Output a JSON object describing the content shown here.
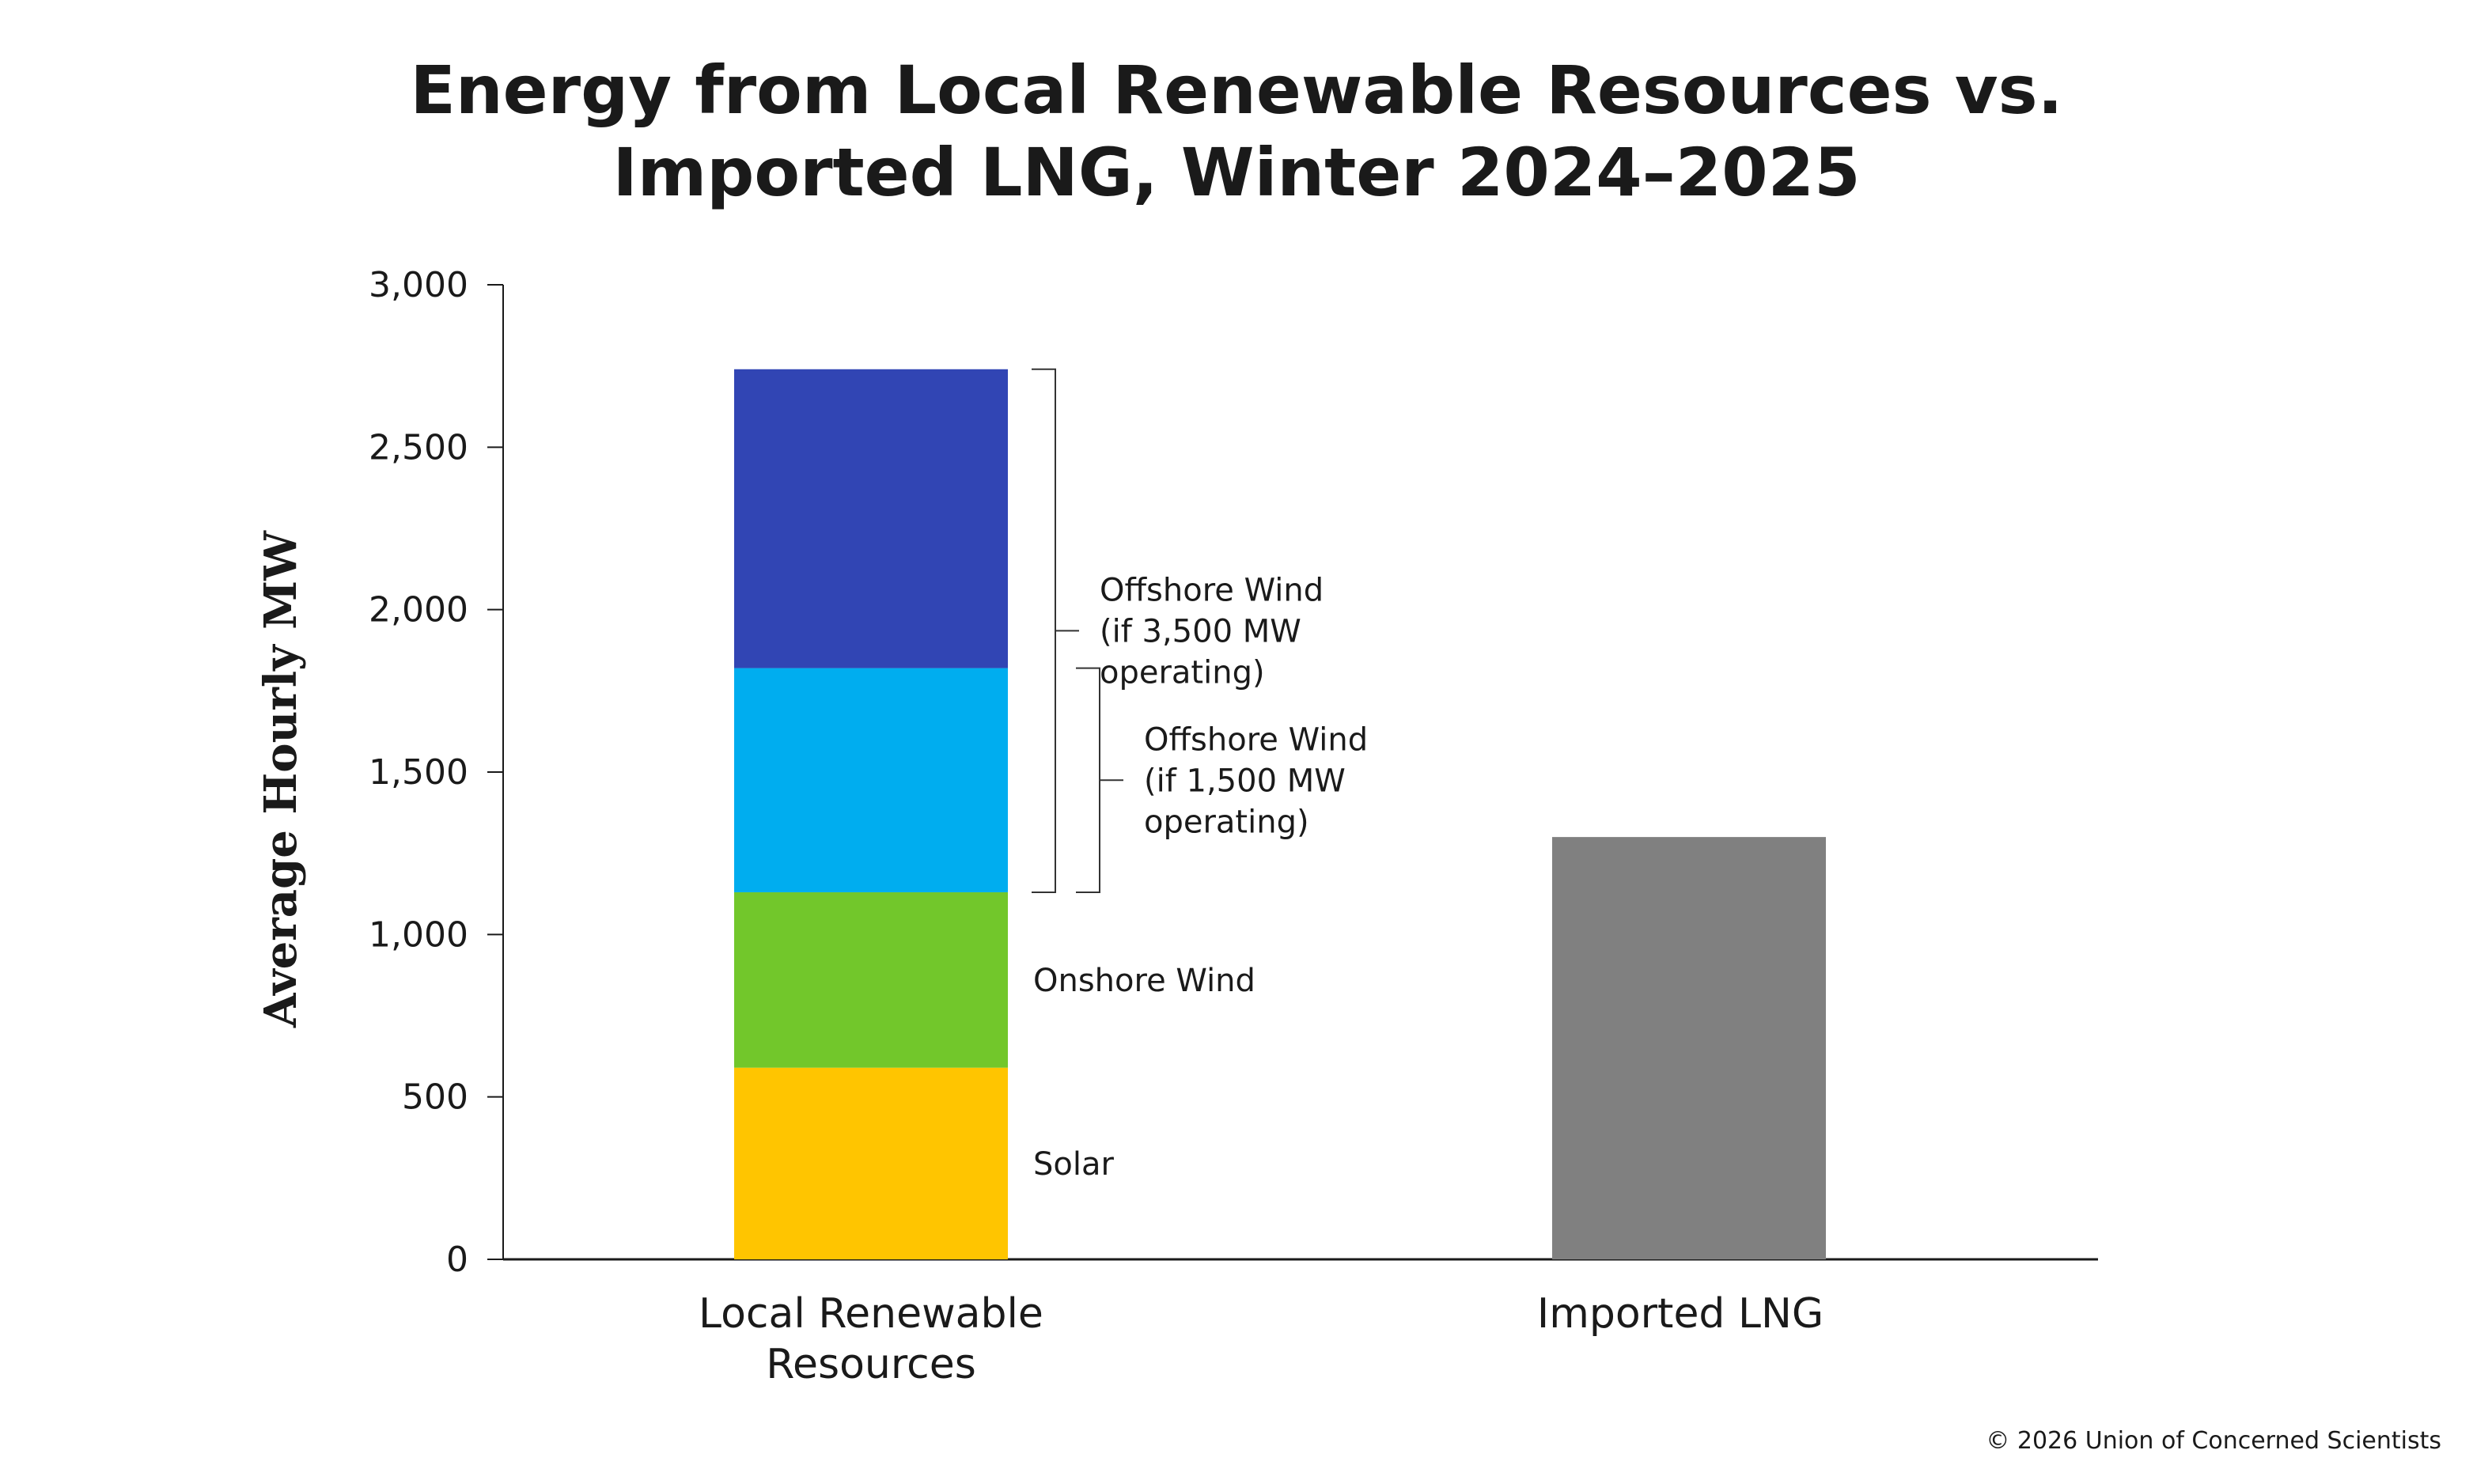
{
  "chart_data": {
    "type": "bar",
    "stacked": true,
    "title_lines": [
      "Energy from Local Renewable Resources vs.",
      "Imported LNG, Winter 2024–2025"
    ],
    "ylabel": "Average Hourly MW",
    "ylim": [
      0,
      3000
    ],
    "yticks": [
      0,
      500,
      1000,
      1500,
      2000,
      2500,
      3000
    ],
    "ytick_labels": [
      "0",
      "500",
      "1,000",
      "1,500",
      "2,000",
      "2,500",
      "3,000"
    ],
    "grid": false,
    "categories": [
      {
        "lines": [
          "Local Renewable",
          "Resources"
        ]
      },
      {
        "lines": [
          "Imported LNG"
        ]
      }
    ],
    "bars": [
      {
        "segments": [
          {
            "name": "Solar",
            "value": 590,
            "color": "#ffc500"
          },
          {
            "name": "Onshore Wind",
            "value": 540,
            "color": "#72c72b"
          },
          {
            "name": "Offshore Wind (if 1,500 MW operating)",
            "value": 690,
            "color": "#00adef"
          },
          {
            "name": "Offshore Wind (if 3,500 MW operating)",
            "value": 920,
            "color": "#3145b4"
          }
        ]
      },
      {
        "segments": [
          {
            "name": "Imported LNG",
            "value": 1300,
            "color": "#808080"
          }
        ]
      }
    ],
    "annotations": [
      {
        "lines": [
          "Solar"
        ],
        "segment": 0
      },
      {
        "lines": [
          "Onshore Wind"
        ],
        "segment": 1
      },
      {
        "lines": [
          "Offshore Wind",
          "(if 1,500 MW",
          "operating)"
        ],
        "range": [
          1130,
          1820
        ]
      },
      {
        "lines": [
          "Offshore Wind",
          "(if 3,500 MW",
          "operating)"
        ],
        "range": [
          1130,
          2740
        ]
      }
    ]
  },
  "copyright": "© 2026 Union of Concerned Scientists"
}
